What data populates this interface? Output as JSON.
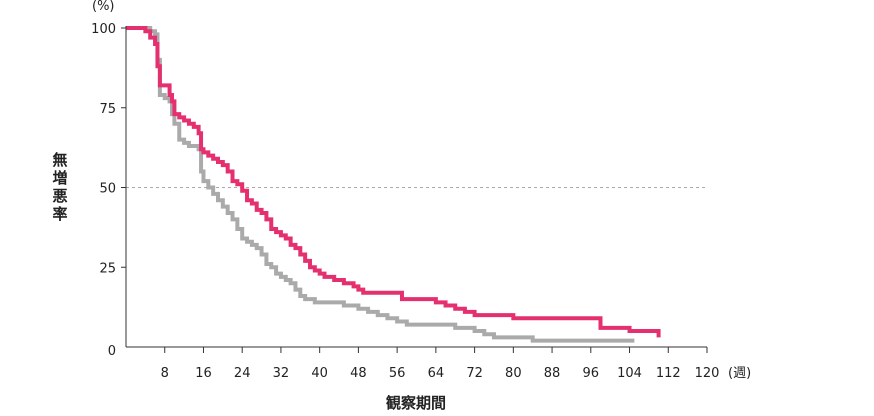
{
  "chart_data": {
    "type": "line",
    "step": true,
    "ylabel": "無増悪率",
    "yunit": "(%)",
    "xlabel": "観察期間",
    "xunit": "(週)",
    "xlim": [
      0,
      120
    ],
    "ylim": [
      0,
      100
    ],
    "x_ticks": [
      8,
      16,
      24,
      32,
      40,
      48,
      56,
      64,
      72,
      80,
      88,
      96,
      104,
      112,
      120
    ],
    "y_ticks": [
      0,
      25,
      50,
      75,
      100
    ],
    "reference_line": {
      "y": 50,
      "style": "dashed",
      "color": "#aaaaaa"
    },
    "series": [
      {
        "color": "#aaaaaa",
        "points": [
          [
            0,
            100
          ],
          [
            4,
            100
          ],
          [
            5,
            99
          ],
          [
            6,
            98
          ],
          [
            6.5,
            90
          ],
          [
            7,
            79
          ],
          [
            8,
            78
          ],
          [
            9,
            77
          ],
          [
            9.5,
            73
          ],
          [
            10,
            70
          ],
          [
            11,
            65
          ],
          [
            12,
            64
          ],
          [
            13,
            63
          ],
          [
            15,
            62
          ],
          [
            15.5,
            55
          ],
          [
            16,
            52
          ],
          [
            17,
            50
          ],
          [
            18,
            48
          ],
          [
            19,
            46
          ],
          [
            20,
            44
          ],
          [
            21,
            42
          ],
          [
            22,
            40
          ],
          [
            23,
            37
          ],
          [
            24,
            34
          ],
          [
            25,
            33
          ],
          [
            26,
            32
          ],
          [
            27,
            31
          ],
          [
            28,
            29
          ],
          [
            29,
            26
          ],
          [
            30,
            25
          ],
          [
            31,
            23
          ],
          [
            32,
            22
          ],
          [
            33,
            21
          ],
          [
            34,
            20
          ],
          [
            35,
            18
          ],
          [
            36,
            16
          ],
          [
            37,
            15
          ],
          [
            38,
            15
          ],
          [
            39,
            14
          ],
          [
            40,
            14
          ],
          [
            44,
            14
          ],
          [
            45,
            13
          ],
          [
            46,
            13
          ],
          [
            48,
            12
          ],
          [
            50,
            11
          ],
          [
            52,
            10
          ],
          [
            54,
            9
          ],
          [
            56,
            8
          ],
          [
            58,
            7
          ],
          [
            60,
            7
          ],
          [
            66,
            7
          ],
          [
            68,
            6
          ],
          [
            72,
            5
          ],
          [
            74,
            4
          ],
          [
            76,
            3
          ],
          [
            80,
            3
          ],
          [
            84,
            2
          ],
          [
            88,
            2
          ],
          [
            100,
            2
          ],
          [
            105,
            2
          ]
        ]
      },
      {
        "color": "#e4306f",
        "points": [
          [
            0,
            100
          ],
          [
            4,
            99
          ],
          [
            5,
            97
          ],
          [
            6,
            95
          ],
          [
            6.5,
            88
          ],
          [
            7,
            82
          ],
          [
            8,
            82
          ],
          [
            9,
            79
          ],
          [
            9.5,
            77
          ],
          [
            10,
            73
          ],
          [
            11,
            72
          ],
          [
            12,
            71
          ],
          [
            13,
            70
          ],
          [
            14,
            69
          ],
          [
            15,
            67
          ],
          [
            15.5,
            62
          ],
          [
            16,
            61
          ],
          [
            17,
            60
          ],
          [
            18,
            59
          ],
          [
            19,
            58
          ],
          [
            20,
            57
          ],
          [
            21,
            55
          ],
          [
            22,
            52
          ],
          [
            23,
            51
          ],
          [
            24,
            49
          ],
          [
            25,
            46
          ],
          [
            26,
            45
          ],
          [
            27,
            43
          ],
          [
            28,
            42
          ],
          [
            29,
            40
          ],
          [
            30,
            37
          ],
          [
            31,
            36
          ],
          [
            32,
            35
          ],
          [
            33,
            34
          ],
          [
            34,
            32
          ],
          [
            35,
            31
          ],
          [
            36,
            29
          ],
          [
            37,
            27
          ],
          [
            38,
            25
          ],
          [
            39,
            24
          ],
          [
            40,
            23
          ],
          [
            41,
            22
          ],
          [
            42,
            22
          ],
          [
            43,
            21
          ],
          [
            45,
            20
          ],
          [
            47,
            19
          ],
          [
            48,
            18
          ],
          [
            49,
            17
          ],
          [
            52,
            17
          ],
          [
            56,
            17
          ],
          [
            57,
            15
          ],
          [
            62,
            15
          ],
          [
            64,
            14
          ],
          [
            66,
            13
          ],
          [
            68,
            12
          ],
          [
            70,
            11
          ],
          [
            72,
            10
          ],
          [
            76,
            10
          ],
          [
            80,
            9
          ],
          [
            88,
            9
          ],
          [
            92,
            9
          ],
          [
            96,
            9
          ],
          [
            98,
            6
          ],
          [
            104,
            5
          ],
          [
            108,
            5
          ],
          [
            110,
            3
          ]
        ]
      }
    ]
  }
}
